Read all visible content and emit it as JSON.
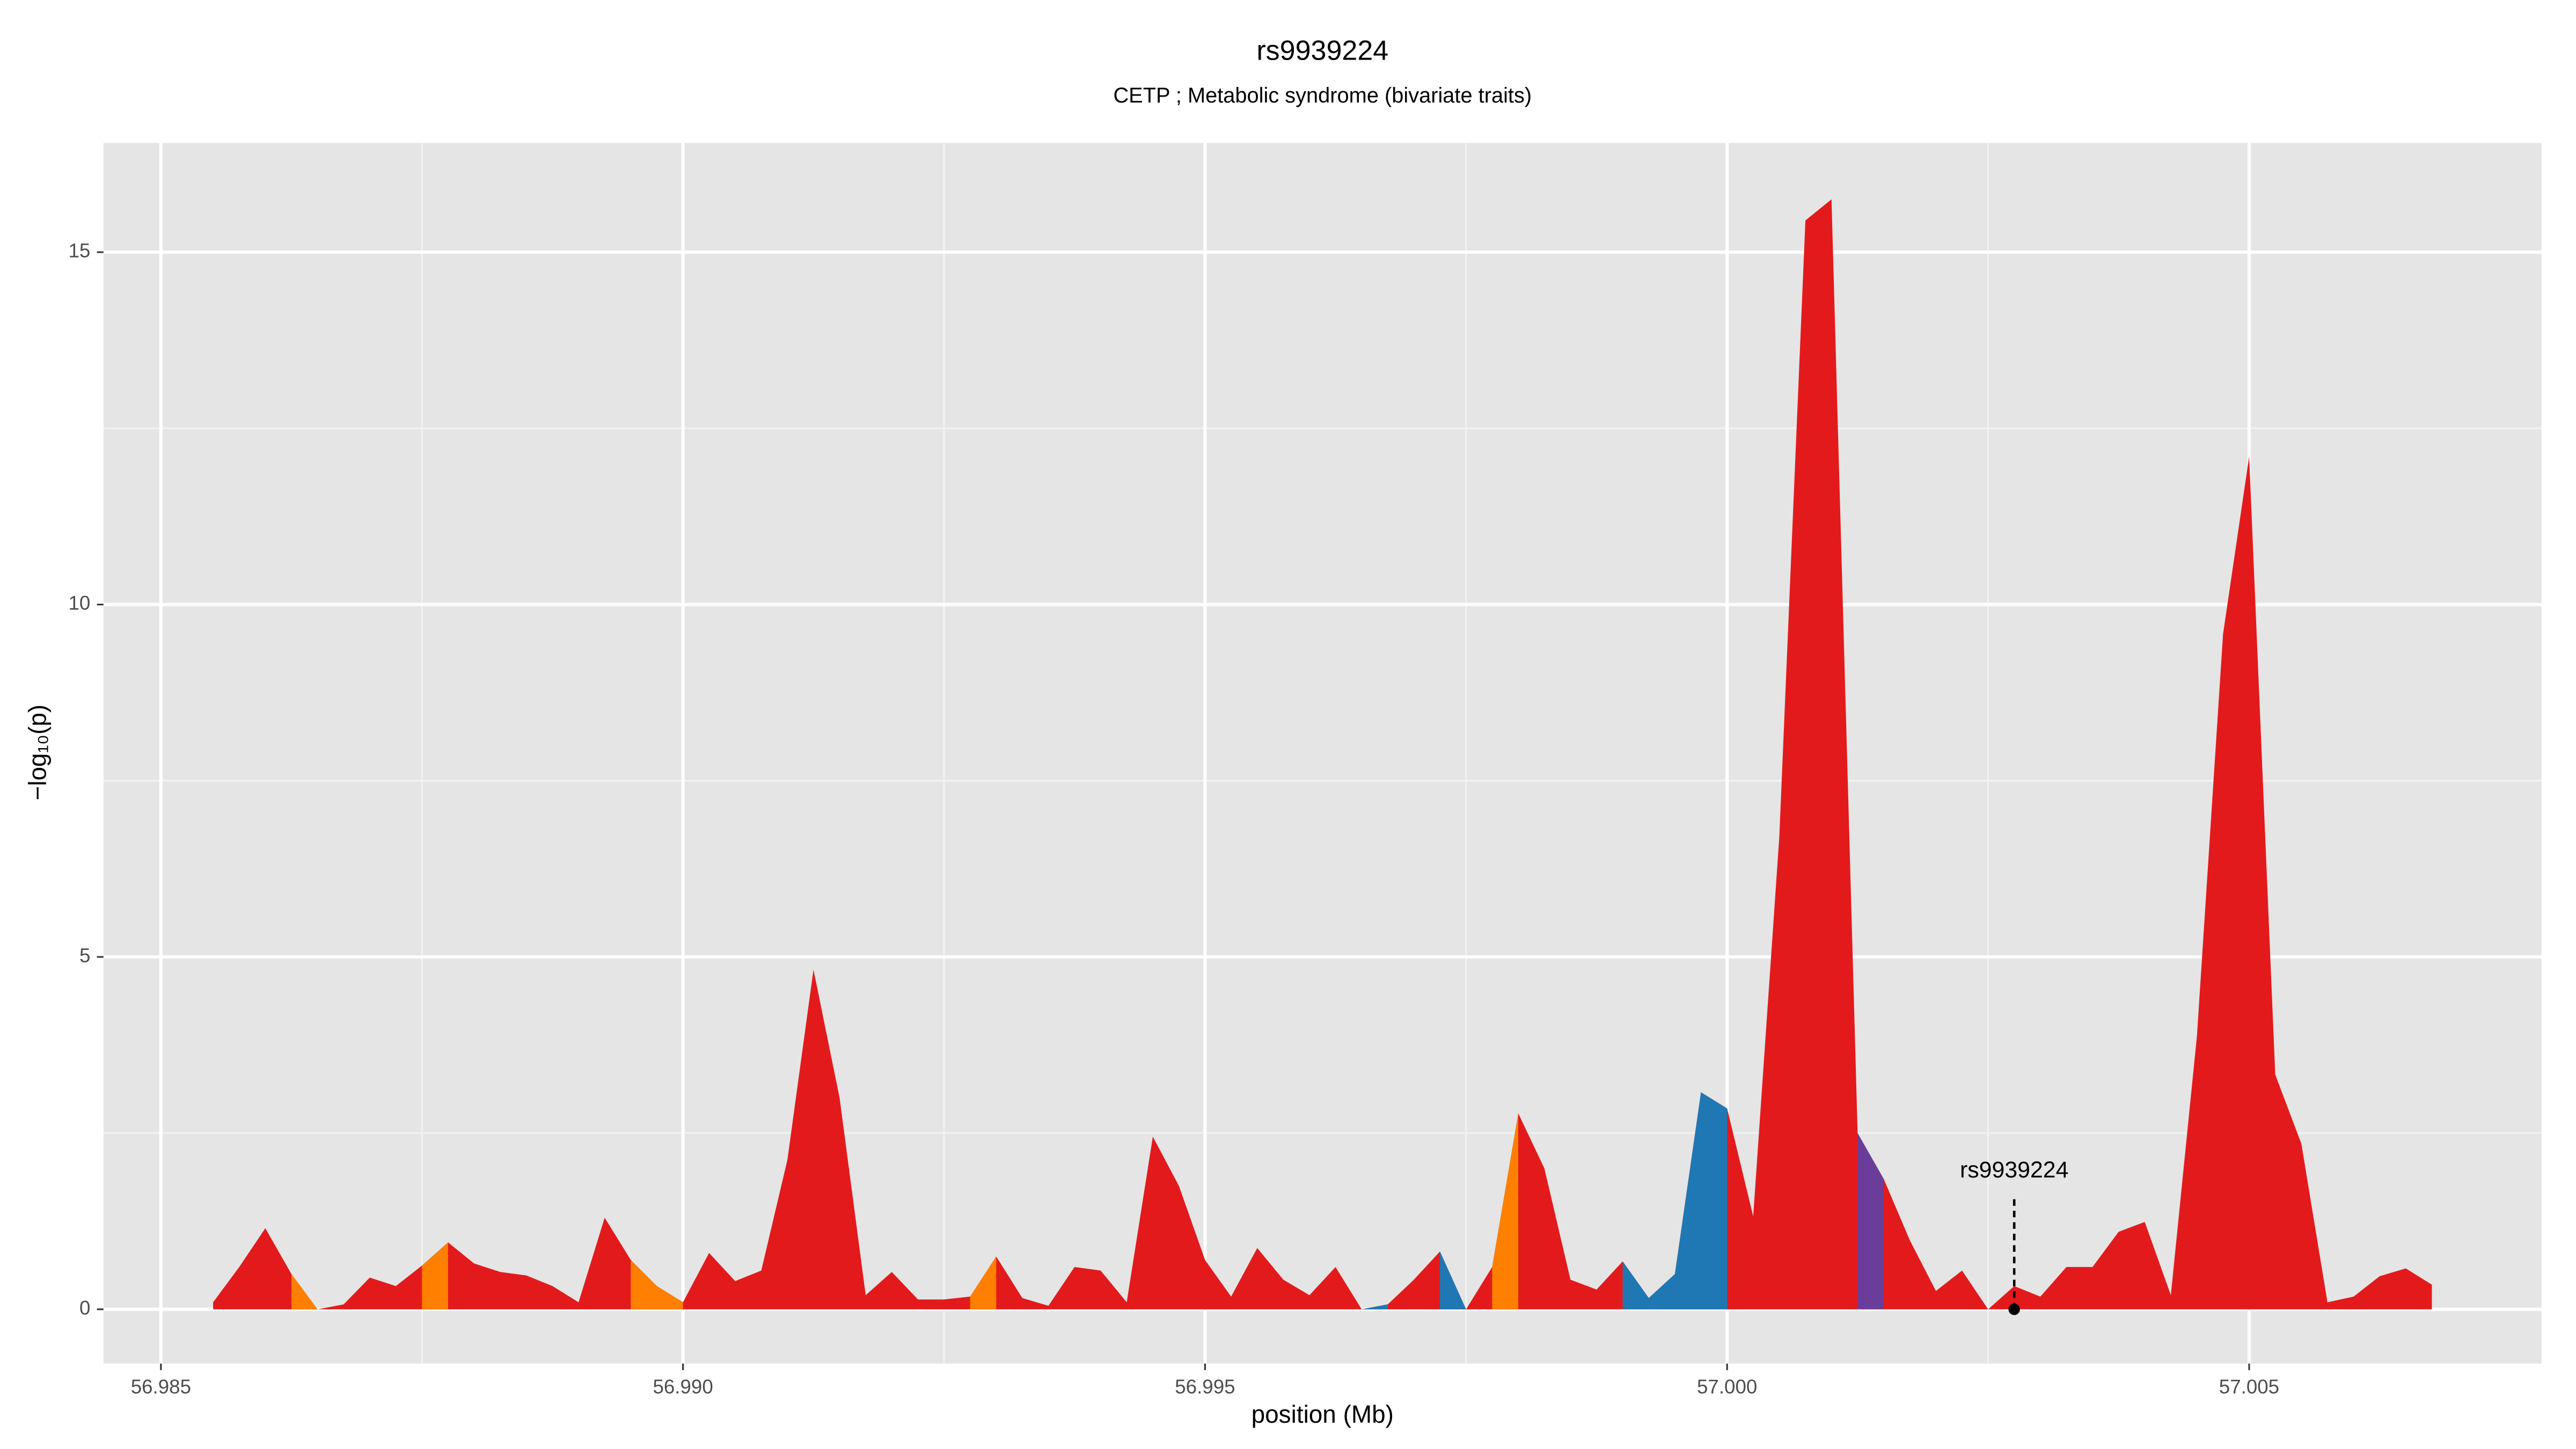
{
  "chart_data": {
    "type": "area",
    "title": "rs9939224",
    "subtitle": "CETP ; Metabolic syndrome (bivariate traits)",
    "x_label": "position (Mb)",
    "y_label": "−log₁₀(p)",
    "xlim": [
      56.98445,
      57.0078
    ],
    "ylim": [
      -0.77,
      16.55
    ],
    "xticks": [
      56.985,
      {
        "value": 56.99,
        "label": "56.990"
      },
      56.995,
      {
        "value": 57.0,
        "label": "57.000"
      },
      57.005
    ],
    "yticks": [
      0,
      5,
      10,
      15
    ],
    "grid": true,
    "x": [
      56.9855,
      56.98575,
      56.986,
      56.98625,
      56.9865,
      56.98675,
      56.987,
      56.98725,
      56.9875,
      56.98775,
      56.988,
      56.98825,
      56.9885,
      56.98875,
      56.989,
      56.98925,
      56.9895,
      56.98975,
      56.99,
      56.99025,
      56.9905,
      56.99075,
      56.991,
      56.99125,
      56.9915,
      56.99175,
      56.992,
      56.99225,
      56.9925,
      56.99275,
      56.993,
      56.99325,
      56.9935,
      56.99375,
      56.994,
      56.99425,
      56.9945,
      56.99475,
      56.995,
      56.99525,
      56.9955,
      56.99575,
      56.996,
      56.99625,
      56.9965,
      56.99675,
      56.997,
      56.99725,
      56.9975,
      56.99775,
      56.998,
      56.99825,
      56.9985,
      56.99875,
      56.999,
      56.99925,
      56.9995,
      56.99975,
      57.0,
      57.00025,
      57.0005,
      57.00075,
      57.001,
      57.00125,
      57.0015,
      57.00175,
      57.002,
      57.00225,
      57.0025,
      57.00275,
      57.003,
      57.00325,
      57.0035,
      57.00375,
      57.004,
      57.00425,
      57.0045,
      57.00475,
      57.005,
      57.00525,
      57.0055,
      57.00575,
      57.006,
      57.00625,
      57.0065,
      57.00675
    ],
    "series": [
      {
        "color": "#e31a1c",
        "values": [
          0.1,
          0.6,
          1.15,
          0.5,
          0,
          0.07,
          0.45,
          0.33,
          0.62,
          0.95,
          0.65,
          0.53,
          0.48,
          0.33,
          0.1,
          1.3,
          0.7,
          0.33,
          0.1,
          0.8,
          0.4,
          0.55,
          2.12,
          4.82,
          3.0,
          0.2,
          0.53,
          0.14,
          0.14,
          0.18,
          0.75,
          0.16,
          0.05,
          0.6,
          0.55,
          0.1,
          2.45,
          1.75,
          0.7,
          0.18,
          0.87,
          0.42,
          0.2,
          0.6,
          0,
          0.07,
          0.42,
          0.82,
          0,
          0.6,
          2.78,
          2.0,
          0.42,
          0.28,
          0.68,
          0.16,
          0.5,
          3.08,
          2.85,
          1.32,
          6.7,
          15.45,
          15.75,
          2.5,
          1.85,
          0.98,
          0.26,
          0.55,
          0,
          0.33,
          0.18,
          0.6,
          0.6,
          1.1,
          1.24,
          0.2,
          3.88,
          9.58,
          12.1,
          3.33,
          2.35,
          0.1,
          0.18,
          0.47,
          0.58,
          0.35
        ]
      },
      {
        "color": "#ff7f00",
        "values": [
          null,
          null,
          null,
          0.5,
          0,
          null,
          null,
          null,
          0.62,
          0.95,
          null,
          null,
          null,
          null,
          null,
          null,
          0.7,
          0.33,
          0.1,
          null,
          null,
          null,
          null,
          null,
          null,
          null,
          null,
          null,
          null,
          0.18,
          0.75,
          null,
          null,
          null,
          null,
          null,
          null,
          null,
          null,
          null,
          null,
          null,
          null,
          null,
          null,
          null,
          null,
          null,
          null,
          0.6,
          2.78,
          null,
          null,
          null,
          null,
          null,
          null,
          null,
          null,
          null,
          null,
          null,
          null,
          null,
          null,
          null,
          null,
          null,
          null,
          null,
          null,
          null,
          null,
          null,
          null,
          null,
          null,
          null,
          null,
          null,
          null,
          null,
          null,
          null,
          null,
          null
        ]
      },
      {
        "color": "#1f78b4",
        "values": [
          null,
          null,
          null,
          null,
          null,
          null,
          null,
          null,
          null,
          null,
          null,
          null,
          null,
          null,
          null,
          null,
          null,
          null,
          null,
          null,
          null,
          null,
          null,
          null,
          null,
          null,
          null,
          null,
          null,
          null,
          null,
          null,
          null,
          null,
          null,
          null,
          null,
          null,
          null,
          null,
          null,
          null,
          null,
          null,
          0,
          0.07,
          null,
          0.82,
          0,
          null,
          null,
          null,
          null,
          null,
          0.68,
          0.16,
          0.5,
          3.08,
          2.85,
          null,
          null,
          null,
          null,
          null,
          null,
          null,
          null,
          null,
          null,
          null,
          null,
          null,
          null,
          null,
          null,
          null,
          null,
          null,
          null,
          null,
          null,
          null,
          null,
          null,
          null,
          null
        ]
      },
      {
        "color": "#6a3d9a",
        "values": [
          null,
          null,
          null,
          null,
          null,
          null,
          null,
          null,
          null,
          null,
          null,
          null,
          null,
          null,
          null,
          null,
          null,
          null,
          null,
          null,
          null,
          null,
          null,
          null,
          null,
          null,
          null,
          null,
          null,
          null,
          null,
          null,
          null,
          null,
          null,
          null,
          null,
          null,
          null,
          null,
          null,
          null,
          null,
          null,
          null,
          null,
          null,
          null,
          null,
          null,
          null,
          null,
          null,
          null,
          null,
          null,
          null,
          null,
          null,
          null,
          null,
          null,
          null,
          2.5,
          1.85,
          null,
          null,
          null,
          null,
          null,
          null,
          null,
          null,
          null,
          null,
          null,
          null,
          null,
          null,
          null,
          null,
          null,
          null,
          null,
          null,
          null
        ]
      }
    ],
    "annotations": [
      {
        "text": "rs9939224",
        "x": 57.00275,
        "y": 0
      }
    ]
  }
}
